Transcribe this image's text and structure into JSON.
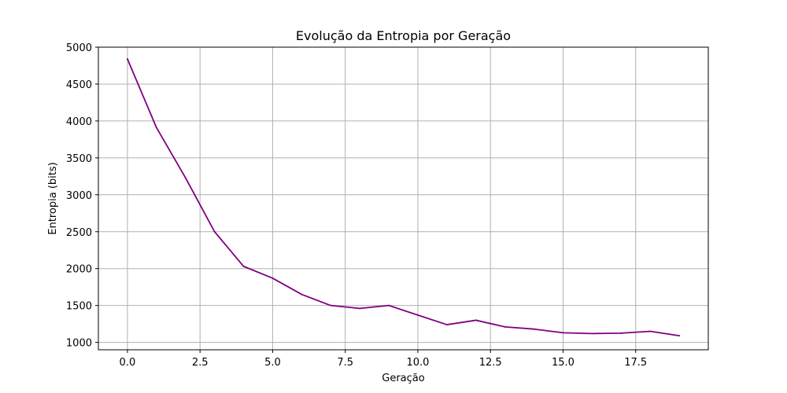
{
  "chart_data": {
    "type": "line",
    "title": "Evolução da Entropia por Geração",
    "xlabel": "Geração",
    "ylabel": "Entropia (bits)",
    "xlim": [
      -1.0,
      20.0
    ],
    "ylim": [
      900,
      5000
    ],
    "x_ticks": [
      0.0,
      2.5,
      5.0,
      7.5,
      10.0,
      12.5,
      15.0,
      17.5
    ],
    "x_tick_labels": [
      "0.0",
      "2.5",
      "5.0",
      "7.5",
      "10.0",
      "12.5",
      "15.0",
      "17.5"
    ],
    "y_ticks": [
      1000,
      1500,
      2000,
      2500,
      3000,
      3500,
      4000,
      4500,
      5000
    ],
    "y_tick_labels": [
      "1000",
      "1500",
      "2000",
      "2500",
      "3000",
      "3500",
      "4000",
      "4500",
      "5000"
    ],
    "grid": true,
    "legend": false,
    "series": [
      {
        "color": "#800080",
        "x": [
          0,
          1,
          2,
          3,
          4,
          5,
          6,
          7,
          8,
          9,
          10,
          11,
          12,
          13,
          14,
          15,
          16,
          17,
          18,
          19
        ],
        "values": [
          4840,
          3910,
          3230,
          2500,
          2030,
          1870,
          1650,
          1500,
          1460,
          1500,
          1370,
          1240,
          1300,
          1210,
          1180,
          1130,
          1120,
          1125,
          1150,
          1090
        ]
      }
    ]
  }
}
